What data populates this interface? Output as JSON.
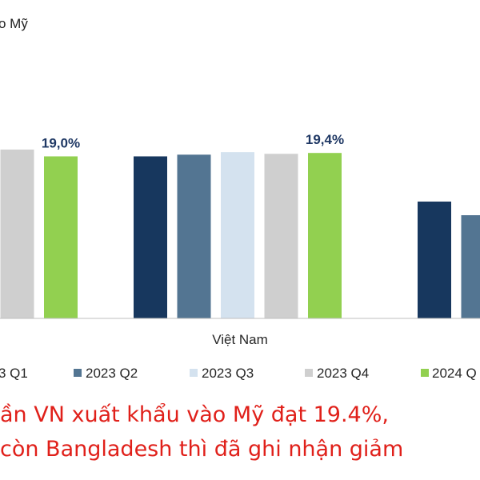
{
  "title": "o Mỹ",
  "chart_data": {
    "type": "bar",
    "categories": [
      "",
      "Việt Nam",
      ""
    ],
    "series": [
      {
        "name": "3 Q1",
        "values": [
          null,
          19.0,
          13.7
        ]
      },
      {
        "name": "2023 Q2",
        "values": [
          null,
          19.2,
          12.1
        ]
      },
      {
        "name": "2023 Q3",
        "values": [
          null,
          19.5,
          null
        ]
      },
      {
        "name": "2023 Q4",
        "values": [
          19.8,
          19.3,
          null
        ]
      },
      {
        "name": "2024 Q",
        "values": [
          19.0,
          19.4,
          null
        ]
      }
    ],
    "data_labels": [
      {
        "category": 0,
        "series": 4,
        "text": "19,0%"
      },
      {
        "category": 1,
        "series": 4,
        "text": "19,4%"
      }
    ],
    "colors": [
      "#17375e",
      "#537592",
      "#d4e2ef",
      "#cfcfcf",
      "#92d050"
    ],
    "ylim": [
      0,
      20
    ],
    "grid": false,
    "legend_position": "bottom"
  },
  "caption": {
    "line1": "ần VN xuất khẩu vào Mỹ đạt 19.4%,",
    "line2": " còn Bangladesh thì đã ghi nhận giảm"
  }
}
